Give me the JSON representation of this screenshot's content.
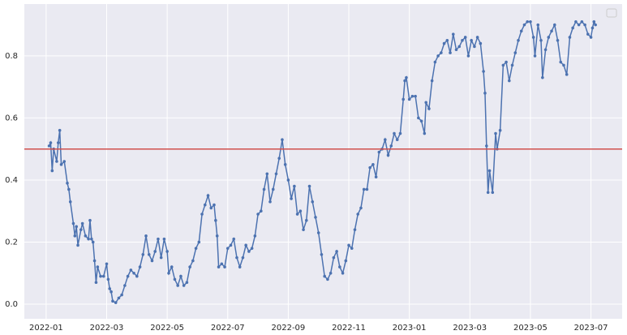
{
  "chart_data": {
    "type": "line",
    "x": [
      0.1,
      0.15,
      0.2,
      0.25,
      0.35,
      0.4,
      0.45,
      0.5,
      0.6,
      0.7,
      0.75,
      0.8,
      0.9,
      0.95,
      1.0,
      1.05,
      1.15,
      1.2,
      1.3,
      1.4,
      1.45,
      1.5,
      1.55,
      1.6,
      1.65,
      1.7,
      1.8,
      1.9,
      2.0,
      2.05,
      2.1,
      2.15,
      2.2,
      2.3,
      2.4,
      2.5,
      2.6,
      2.7,
      2.8,
      2.9,
      3.0,
      3.1,
      3.2,
      3.3,
      3.4,
      3.5,
      3.6,
      3.7,
      3.8,
      3.9,
      4.0,
      4.05,
      4.15,
      4.25,
      4.35,
      4.45,
      4.55,
      4.65,
      4.75,
      4.85,
      4.95,
      5.05,
      5.15,
      5.25,
      5.35,
      5.45,
      5.55,
      5.6,
      5.65,
      5.7,
      5.8,
      5.9,
      6.0,
      6.1,
      6.2,
      6.3,
      6.4,
      6.5,
      6.6,
      6.7,
      6.8,
      6.9,
      7.0,
      7.1,
      7.2,
      7.3,
      7.4,
      7.5,
      7.6,
      7.7,
      7.8,
      7.9,
      8.0,
      8.1,
      8.2,
      8.3,
      8.4,
      8.5,
      8.6,
      8.7,
      8.8,
      8.9,
      9.0,
      9.1,
      9.2,
      9.3,
      9.4,
      9.5,
      9.6,
      9.7,
      9.8,
      9.9,
      10.0,
      10.1,
      10.2,
      10.3,
      10.4,
      10.5,
      10.6,
      10.7,
      10.8,
      10.9,
      11.0,
      11.1,
      11.2,
      11.3,
      11.4,
      11.5,
      11.6,
      11.7,
      11.8,
      11.85,
      11.9,
      12.0,
      12.1,
      12.2,
      12.3,
      12.4,
      12.5,
      12.55,
      12.65,
      12.75,
      12.85,
      12.95,
      13.05,
      13.15,
      13.25,
      13.35,
      13.45,
      13.55,
      13.65,
      13.75,
      13.85,
      13.95,
      14.05,
      14.15,
      14.25,
      14.35,
      14.45,
      14.5,
      14.55,
      14.6,
      14.65,
      14.75,
      14.85,
      14.9,
      15.0,
      15.1,
      15.2,
      15.3,
      15.4,
      15.5,
      15.6,
      15.7,
      15.8,
      15.9,
      16.0,
      16.1,
      16.15,
      16.25,
      16.35,
      16.4,
      16.5,
      16.6,
      16.7,
      16.8,
      16.9,
      17.0,
      17.1,
      17.2,
      17.3,
      17.4,
      17.5,
      17.6,
      17.7,
      17.8,
      17.9,
      18.0,
      18.05,
      18.1,
      18.15
    ],
    "series": [
      {
        "color": "#4c72b0",
        "values": [
          0.51,
          0.52,
          0.43,
          0.5,
          0.46,
          0.52,
          0.56,
          0.45,
          0.46,
          0.39,
          0.37,
          0.33,
          0.26,
          0.22,
          0.25,
          0.19,
          0.24,
          0.26,
          0.22,
          0.21,
          0.27,
          0.21,
          0.2,
          0.14,
          0.07,
          0.12,
          0.09,
          0.09,
          0.13,
          0.08,
          0.05,
          0.04,
          0.01,
          0.005,
          0.02,
          0.03,
          0.06,
          0.09,
          0.11,
          0.1,
          0.09,
          0.12,
          0.16,
          0.22,
          0.16,
          0.14,
          0.17,
          0.21,
          0.15,
          0.21,
          0.17,
          0.1,
          0.12,
          0.08,
          0.06,
          0.09,
          0.06,
          0.07,
          0.12,
          0.14,
          0.18,
          0.2,
          0.29,
          0.32,
          0.35,
          0.31,
          0.32,
          0.27,
          0.22,
          0.12,
          0.13,
          0.12,
          0.18,
          0.19,
          0.21,
          0.15,
          0.12,
          0.15,
          0.19,
          0.17,
          0.18,
          0.22,
          0.29,
          0.3,
          0.37,
          0.42,
          0.33,
          0.37,
          0.42,
          0.47,
          0.53,
          0.45,
          0.4,
          0.34,
          0.38,
          0.29,
          0.3,
          0.24,
          0.27,
          0.38,
          0.33,
          0.28,
          0.23,
          0.16,
          0.09,
          0.08,
          0.1,
          0.15,
          0.17,
          0.12,
          0.1,
          0.14,
          0.19,
          0.18,
          0.24,
          0.29,
          0.31,
          0.37,
          0.37,
          0.44,
          0.45,
          0.41,
          0.49,
          0.5,
          0.53,
          0.48,
          0.51,
          0.55,
          0.53,
          0.55,
          0.66,
          0.72,
          0.73,
          0.66,
          0.67,
          0.67,
          0.6,
          0.59,
          0.55,
          0.65,
          0.63,
          0.72,
          0.78,
          0.8,
          0.81,
          0.84,
          0.85,
          0.81,
          0.87,
          0.82,
          0.83,
          0.85,
          0.86,
          0.8,
          0.85,
          0.83,
          0.86,
          0.84,
          0.75,
          0.68,
          0.51,
          0.36,
          0.43,
          0.36,
          0.55,
          0.5,
          0.56,
          0.77,
          0.78,
          0.72,
          0.77,
          0.81,
          0.85,
          0.88,
          0.9,
          0.91,
          0.91,
          0.86,
          0.8,
          0.9,
          0.85,
          0.73,
          0.82,
          0.86,
          0.88,
          0.9,
          0.85,
          0.78,
          0.77,
          0.74,
          0.86,
          0.89,
          0.91,
          0.9,
          0.91,
          0.9,
          0.87,
          0.86,
          0.89,
          0.91,
          0.9
        ]
      }
    ],
    "hline": {
      "value": 0.5,
      "color": "#d0504d"
    },
    "xlim": [
      -0.72,
      19.03
    ],
    "xticks": [
      {
        "value": 0,
        "label": "2022-01"
      },
      {
        "value": 2,
        "label": "2022-03"
      },
      {
        "value": 4,
        "label": "2022-05"
      },
      {
        "value": 6,
        "label": "2022-07"
      },
      {
        "value": 8,
        "label": "2022-09"
      },
      {
        "value": 10,
        "label": "2022-11"
      },
      {
        "value": 12,
        "label": "2023-01"
      },
      {
        "value": 14,
        "label": "2023-03"
      },
      {
        "value": 16,
        "label": "2023-05"
      },
      {
        "value": 18,
        "label": "2023-07"
      }
    ],
    "ylim": [
      -0.047,
      0.967
    ],
    "yticks": [
      {
        "value": 0,
        "label": "0.0"
      },
      0.2,
      0.4,
      0.6,
      0.8
    ],
    "grid": true
  }
}
